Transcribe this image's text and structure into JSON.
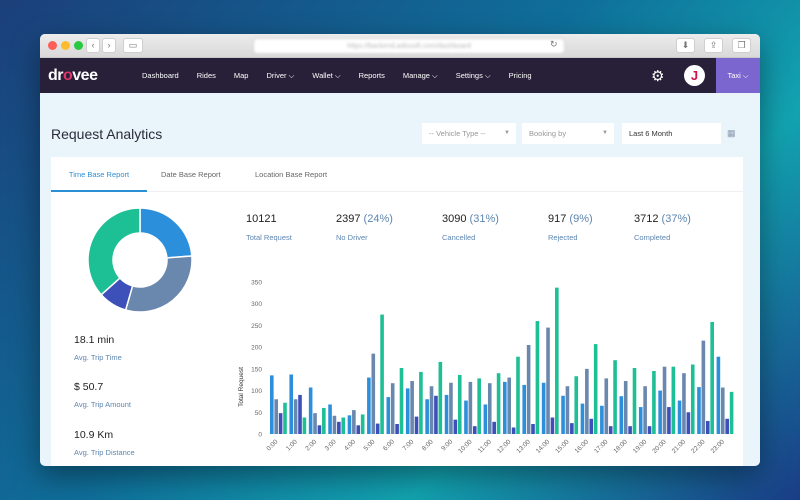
{
  "browser": {
    "url": "https://backend.adissoft.com/dashboard"
  },
  "nav": {
    "logo": "drovee",
    "items": [
      {
        "label": "Dashboard"
      },
      {
        "label": "Rides"
      },
      {
        "label": "Map"
      },
      {
        "label": "Driver ⌵"
      },
      {
        "label": "Wallet ⌵"
      },
      {
        "label": "Reports"
      },
      {
        "label": "Manage ⌵"
      },
      {
        "label": "Settings ⌵"
      },
      {
        "label": "Pricing"
      }
    ],
    "avatar_letter": "J",
    "service": "Taxi ⌵"
  },
  "page": {
    "title": "Request Analytics",
    "filters": {
      "vehicle_type": "-- Vehicle Type --",
      "booking_by": "Booking by",
      "period": "Last 6 Month"
    }
  },
  "tabs": [
    {
      "label": "Time Base Report",
      "active": true
    },
    {
      "label": "Date Base Report"
    },
    {
      "label": "Location Base Report"
    }
  ],
  "stats": [
    {
      "value": "10121",
      "pct": "",
      "label": "Total Request"
    },
    {
      "value": "2397",
      "pct": "(24%)",
      "label": "No Driver"
    },
    {
      "value": "3090",
      "pct": "(31%)",
      "label": "Cancelled"
    },
    {
      "value": "917",
      "pct": "(9%)",
      "label": "Rejected"
    },
    {
      "value": "3712",
      "pct": "(37%)",
      "label": "Completed"
    }
  ],
  "metrics": [
    {
      "value": "18.1 min",
      "label": "Avg. Trip Time"
    },
    {
      "value": "$ 50.7",
      "label": "Avg. Trip Amount"
    },
    {
      "value": "10.9 Km",
      "label": "Avg. Trip Distance"
    }
  ],
  "colors": {
    "no_driver": "#2b8fdc",
    "cancelled": "#6a87ae",
    "rejected": "#3d4fb8",
    "completed": "#1dbf94"
  },
  "chart_data": [
    {
      "type": "pie",
      "donut": true,
      "slices": [
        {
          "label": "No Driver",
          "value": 24
        },
        {
          "label": "Cancelled",
          "value": 31
        },
        {
          "label": "Rejected",
          "value": 9
        },
        {
          "label": "Completed",
          "value": 37
        }
      ]
    },
    {
      "type": "bar",
      "ylabel": "Total Request",
      "ylim": [
        0,
        350
      ],
      "yticks": [
        0,
        50,
        100,
        150,
        200,
        250,
        300,
        350
      ],
      "categories": [
        "0:00",
        "1:00",
        "2:00",
        "3:00",
        "4:00",
        "5:00",
        "6:00",
        "7:00",
        "8:00",
        "9:00",
        "10:00",
        "11:00",
        "12:00",
        "13:00",
        "14:00",
        "15:00",
        "16:00",
        "17:00",
        "18:00",
        "19:00",
        "20:00",
        "21:00",
        "22:00",
        "23:00"
      ],
      "series": [
        {
          "values": [
            135,
            137,
            107,
            68,
            43,
            130,
            85,
            105,
            80,
            90,
            77,
            68,
            120,
            113,
            118,
            88,
            70,
            65,
            87,
            62,
            100,
            77,
            108,
            178
          ]
        },
        {
          "values": [
            80,
            80,
            48,
            42,
            55,
            185,
            117,
            122,
            110,
            118,
            120,
            117,
            130,
            205,
            245,
            110,
            150,
            128,
            122,
            110,
            155,
            140,
            215,
            107
          ]
        },
        {
          "values": [
            48,
            90,
            20,
            28,
            20,
            24,
            23,
            40,
            88,
            33,
            18,
            28,
            15,
            23,
            38,
            25,
            35,
            18,
            18,
            18,
            62,
            50,
            30,
            35
          ]
        },
        {
          "values": [
            72,
            38,
            60,
            38,
            45,
            275,
            152,
            143,
            166,
            136,
            128,
            140,
            178,
            260,
            337,
            133,
            207,
            170,
            152,
            145,
            155,
            160,
            258,
            97
          ]
        }
      ]
    }
  ]
}
